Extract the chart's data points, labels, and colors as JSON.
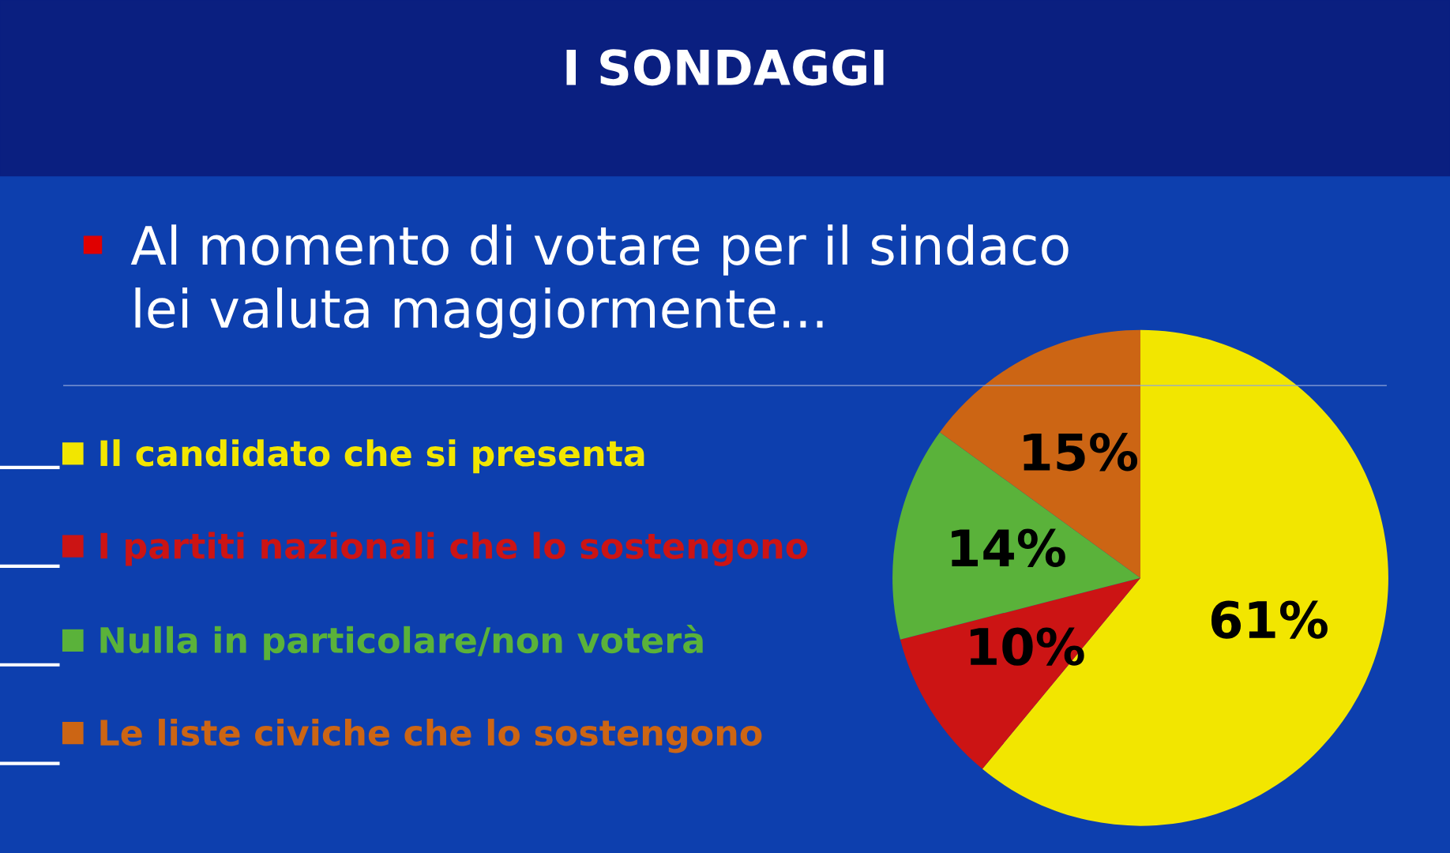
{
  "chart_data": {
    "type": "pie",
    "title": "I SONDAGGI",
    "subtitle": "Al momento di votare per il sindaco\nlei valuta maggiormente...",
    "categories": [
      "Il candidato che si presenta",
      "I partiti nazionali che lo sostengono",
      "Nulla in particolare/non voterà",
      "Le liste civiche che lo sostengono"
    ],
    "values": [
      61,
      10,
      14,
      15
    ],
    "colors": [
      "#f2e600",
      "#cc1414",
      "#5ab23a",
      "#cc6514"
    ],
    "value_labels": [
      "61%",
      "10%",
      "14%",
      "15%"
    ],
    "legend": "left"
  }
}
